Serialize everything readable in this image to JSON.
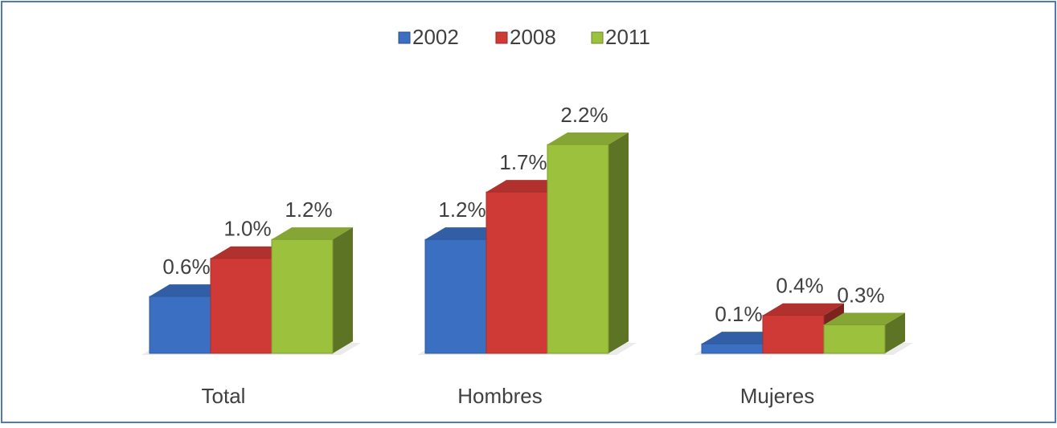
{
  "chart_data": {
    "type": "bar3d",
    "categories": [
      "Total",
      "Hombres",
      "Mujeres"
    ],
    "series": [
      {
        "name": "2002",
        "color": "#3b6fc2",
        "values": [
          0.6,
          1.2,
          0.1
        ],
        "value_labels": [
          "0.6%",
          "1.2%",
          "0.1%"
        ]
      },
      {
        "name": "2008",
        "color": "#cf3a36",
        "values": [
          1.0,
          1.7,
          0.4
        ],
        "value_labels": [
          "1.0%",
          "1.7%",
          "0.4%"
        ]
      },
      {
        "name": "2011",
        "color": "#9cc23d",
        "values": [
          1.2,
          2.2,
          0.3
        ],
        "value_labels": [
          "1.2%",
          "2.2%",
          "0.3%"
        ]
      }
    ],
    "legend": "top"
  }
}
